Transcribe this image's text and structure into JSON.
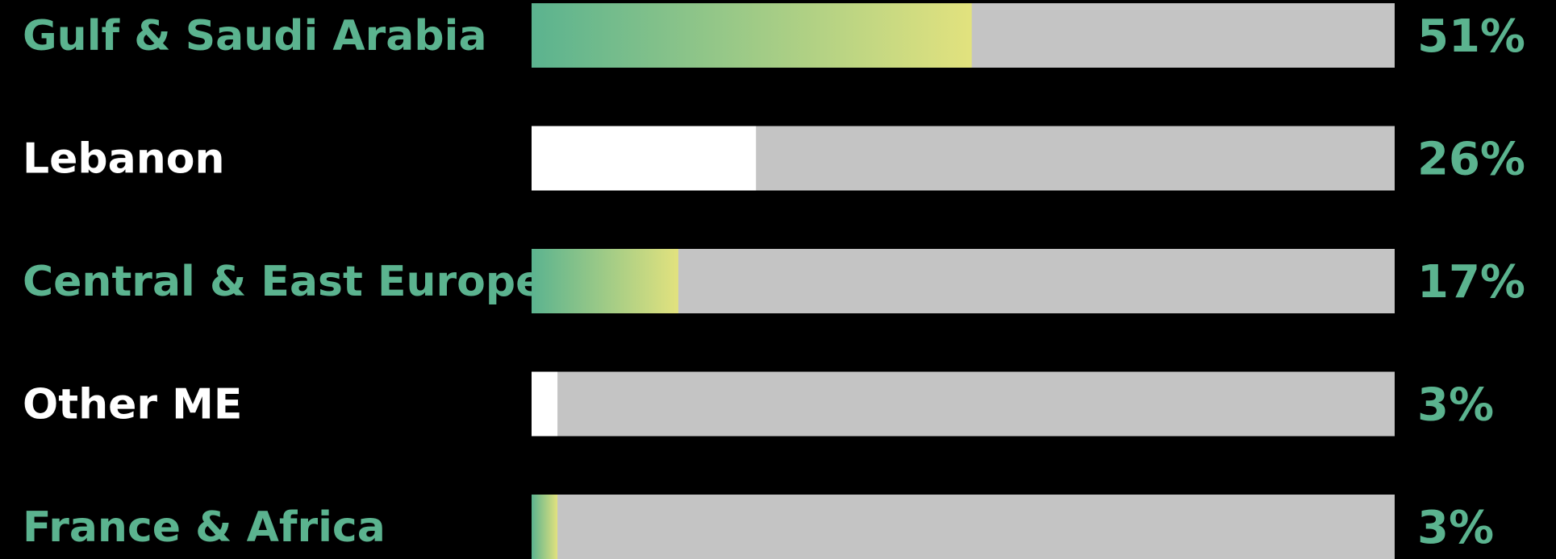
{
  "chart_data": {
    "type": "bar",
    "orientation": "horizontal",
    "categories": [
      "Gulf & Saudi Arabia",
      "Lebanon",
      "Central & East Europe",
      "Other ME",
      "France & Africa"
    ],
    "values": [
      51,
      26,
      17,
      3,
      3
    ],
    "value_labels": [
      "51%",
      "26%",
      "17%",
      "3%",
      "3%"
    ],
    "xlim": [
      0,
      100
    ],
    "fill_style": [
      "gradient",
      "solid",
      "gradient",
      "solid",
      "gradient"
    ],
    "label_color": [
      "#5bb38f",
      "#ffffff",
      "#5bb38f",
      "#ffffff",
      "#5bb38f"
    ],
    "grid": false,
    "legend": "none"
  },
  "colors": {
    "background": "#000000",
    "track": "#c4c4c4",
    "accent": "#5bb38f",
    "gradient_start": "#5bb38f",
    "gradient_end": "#e2e27e",
    "solid_fill": "#ffffff",
    "value_text": "#5bb38f"
  }
}
